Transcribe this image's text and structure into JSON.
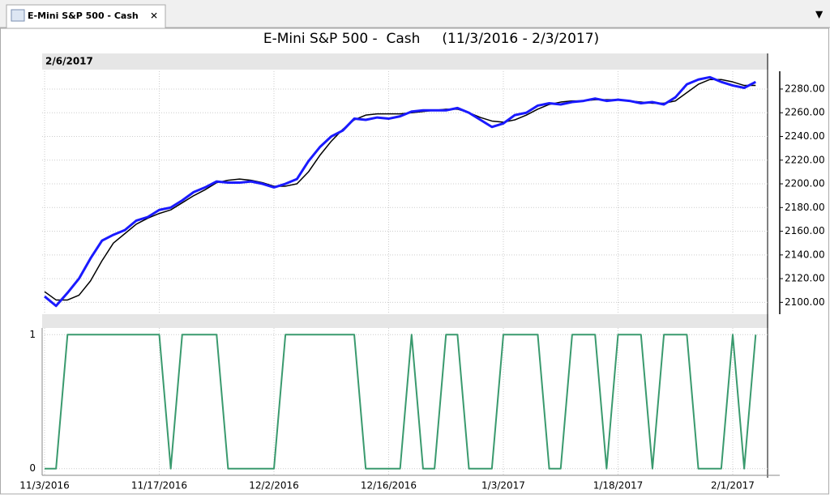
{
  "tab": {
    "title": "E-Mini S&P 500 -  Cash"
  },
  "chart_data": [
    {
      "type": "line",
      "title": "E-Mini S&P 500 -  Cash     (11/3/2016 - 2/3/2017)",
      "date_label": "2/6/2017",
      "ylim": [
        2090,
        2295
      ],
      "yticks": [
        {
          "value": 2100,
          "label": "2100.00"
        },
        {
          "value": 2120,
          "label": "2120.00"
        },
        {
          "value": 2140,
          "label": "2140.00"
        },
        {
          "value": 2160,
          "label": "2160.00"
        },
        {
          "value": 2180,
          "label": "2180.00"
        },
        {
          "value": 2200,
          "label": "2200.00"
        },
        {
          "value": 2220,
          "label": "2220.00"
        },
        {
          "value": 2240,
          "label": "2240.00"
        },
        {
          "value": 2260,
          "label": "2260.00"
        },
        {
          "value": 2280,
          "label": "2280.00"
        }
      ],
      "grid": true,
      "series": [
        {
          "color": "#000000",
          "values": [
            2109,
            2102,
            2102,
            2106,
            2118,
            2135,
            2150,
            2158,
            2166,
            2171,
            2175,
            2178,
            2184,
            2190,
            2195,
            2201,
            2203,
            2204,
            2203,
            2201,
            2198,
            2198,
            2200,
            2210,
            2224,
            2236,
            2246,
            2254,
            2258,
            2259,
            2259,
            2259,
            2260,
            2261,
            2262,
            2263,
            2263,
            2260,
            2256,
            2253,
            2252,
            2254,
            2258,
            2263,
            2267,
            2269,
            2270,
            2270,
            2271,
            2271,
            2271,
            2270,
            2269,
            2268,
            2268,
            2270,
            2277,
            2284,
            2288,
            2288,
            2286,
            2283,
            2283
          ]
        },
        {
          "color": "#1a1aff",
          "values": [
            2105,
            2097,
            2108,
            2120,
            2137,
            2152,
            2157,
            2161,
            2169,
            2172,
            2178,
            2180,
            2186,
            2193,
            2197,
            2202,
            2201,
            2201,
            2202,
            2200,
            2197,
            2200,
            2204,
            2219,
            2231,
            2240,
            2245,
            2255,
            2254,
            2256,
            2255,
            2257,
            2261,
            2262,
            2262,
            2262,
            2264,
            2260,
            2254,
            2248,
            2251,
            2258,
            2260,
            2266,
            2268,
            2267,
            2269,
            2270,
            2272,
            2270,
            2271,
            2270,
            2268,
            2269,
            2267,
            2273,
            2284,
            2288,
            2290,
            2286,
            2283,
            2281,
            2286
          ]
        }
      ]
    },
    {
      "type": "line",
      "categories": [
        "11/3/2016",
        null,
        null,
        null,
        null,
        null,
        null,
        null,
        null,
        null,
        "11/17/2016",
        null,
        null,
        null,
        null,
        null,
        null,
        null,
        null,
        null,
        "12/2/2016",
        null,
        null,
        null,
        null,
        null,
        null,
        null,
        null,
        null,
        "12/16/2016",
        null,
        null,
        null,
        null,
        null,
        null,
        null,
        null,
        null,
        "1/3/2017",
        null,
        null,
        null,
        null,
        null,
        null,
        null,
        null,
        null,
        "1/18/2017",
        null,
        null,
        null,
        null,
        null,
        null,
        null,
        null,
        null,
        "2/1/2017",
        null,
        null
      ],
      "ylim": [
        -0.05,
        1.05
      ],
      "yticks": [
        0,
        1
      ],
      "grid": true,
      "series": [
        {
          "color": "#3a9a6e",
          "values": [
            0,
            0,
            1,
            1,
            1,
            1,
            1,
            1,
            1,
            1,
            1,
            0,
            1,
            1,
            1,
            1,
            0,
            0,
            0,
            0,
            0,
            1,
            1,
            1,
            1,
            1,
            1,
            1,
            0,
            0,
            0,
            0,
            1,
            0,
            0,
            1,
            1,
            0,
            0,
            0,
            1,
            1,
            1,
            1,
            0,
            0,
            1,
            1,
            1,
            0,
            1,
            1,
            1,
            0,
            1,
            1,
            1,
            0,
            0,
            0,
            1,
            0,
            1
          ]
        }
      ]
    }
  ]
}
